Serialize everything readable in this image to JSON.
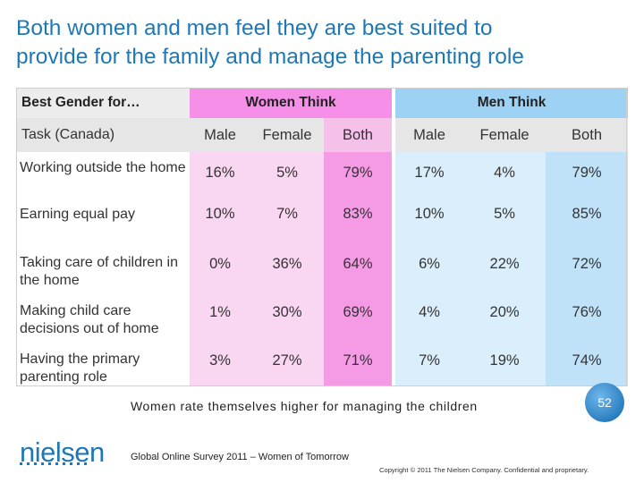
{
  "title": {
    "line1": "Both women and men feel they are best suited to",
    "line2": "provide for the family and manage the parenting role"
  },
  "table": {
    "corner_label": "Best Gender for…",
    "group_women": "Women Think",
    "group_men": "Men Think",
    "task_header": "Task (Canada)",
    "subheaders": [
      "Male",
      "Female",
      "Both",
      "Male",
      "Female",
      "Both"
    ],
    "rows": [
      {
        "task": "Working outside the home",
        "values": [
          "16%",
          "5%",
          "79%",
          "17%",
          "4%",
          "79%"
        ]
      },
      {
        "task": "Earning equal pay",
        "values": [
          "10%",
          "7%",
          "83%",
          "10%",
          "5%",
          "85%"
        ]
      },
      {
        "task": "Taking care of children in the home",
        "values": [
          "0%",
          "36%",
          "64%",
          "6%",
          "22%",
          "72%"
        ]
      },
      {
        "task": "Making child care decisions out of home",
        "values": [
          "1%",
          "30%",
          "69%",
          "4%",
          "20%",
          "76%"
        ]
      },
      {
        "task": "Having the primary parenting role",
        "values": [
          "3%",
          "27%",
          "71%",
          "7%",
          "19%",
          "74%"
        ]
      }
    ]
  },
  "note": "Women rate themselves higher for managing the children",
  "page_number": "52",
  "logo_text": "nielsen",
  "source": "Global Online Survey 2011 – Women of Tomorrow",
  "copyright": "Copyright © 2011 The Nielsen Company. Confidential and proprietary.",
  "colors": {
    "title": "#1f78b4",
    "women_header": "#f58fe8",
    "men_header": "#9ed2f5",
    "women_cell": "#f9d6f1",
    "men_cell": "#dbeefb"
  }
}
